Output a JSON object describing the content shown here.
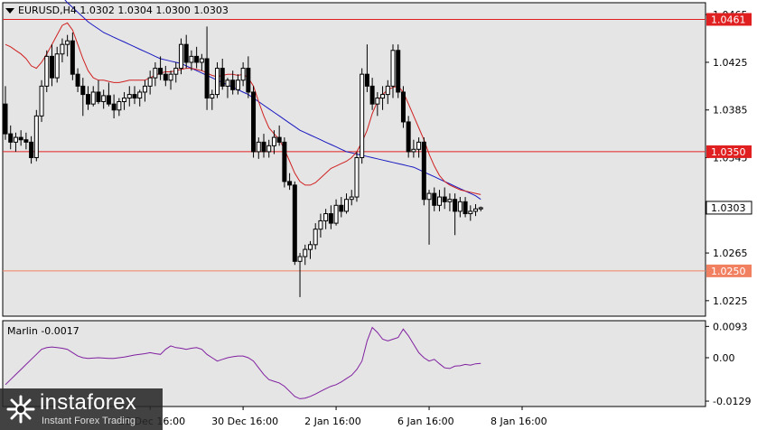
{
  "header": {
    "symbol_line": "EURUSD,H4  1.0302 1.0304 1.0300 1.0303",
    "indicator_line": "Marlin -0.0017"
  },
  "watermark": {
    "brand": "instaforex",
    "tagline": "Instant Forex Trading"
  },
  "colors": {
    "background": "#e5e5e5",
    "panel_border": "#000000",
    "candle": "#000000",
    "ma_red": "#d02020",
    "ma_blue": "#1818c0",
    "level_red": "#e02020",
    "level_orange": "#f08060",
    "oscillator": "#8020a0"
  },
  "chart_data": [
    {
      "type": "candlestick",
      "title": "EURUSD,H4",
      "ohlc_header": {
        "open": 1.0302,
        "high": 1.0304,
        "low": 1.03,
        "close": 1.0303
      },
      "ylim": [
        1.0212,
        1.0475
      ],
      "y_ticks": [
        1.0465,
        1.0425,
        1.0385,
        1.0345,
        1.0305,
        1.0265,
        1.0225
      ],
      "x_tick_labels": [
        "26 Dec 16:00",
        "30 Dec 16:00",
        "2 Jan 16:00",
        "6 Jan 16:00",
        "8 Jan 16:00"
      ],
      "x_tick_indices": [
        28,
        46,
        64,
        82,
        100
      ],
      "horizontal_levels": [
        {
          "value": 1.0461,
          "label": "1.0461",
          "style": "red"
        },
        {
          "value": 1.035,
          "label": "1.0350",
          "style": "red"
        },
        {
          "value": 1.025,
          "label": "1.0250",
          "style": "orange"
        }
      ],
      "current_price": {
        "value": 1.0303,
        "label": "1.0303"
      },
      "candles": [
        [
          1.039,
          1.0405,
          1.036,
          1.0365
        ],
        [
          1.0365,
          1.0372,
          1.0352,
          1.0358
        ],
        [
          1.0358,
          1.0366,
          1.035,
          1.0362
        ],
        [
          1.0362,
          1.0368,
          1.0355,
          1.036
        ],
        [
          1.036,
          1.0366,
          1.0352,
          1.0358
        ],
        [
          1.0358,
          1.0363,
          1.034,
          1.0345
        ],
        [
          1.0345,
          1.0385,
          1.0342,
          1.038
        ],
        [
          1.038,
          1.041,
          1.0375,
          1.0405
        ],
        [
          1.0405,
          1.0435,
          1.04,
          1.043
        ],
        [
          1.043,
          1.044,
          1.0405,
          1.0412
        ],
        [
          1.0412,
          1.0438,
          1.0408,
          1.0432
        ],
        [
          1.0432,
          1.0445,
          1.0425,
          1.044
        ],
        [
          1.044,
          1.0448,
          1.043,
          1.0443
        ],
        [
          1.0443,
          1.045,
          1.041,
          1.0415
        ],
        [
          1.0415,
          1.042,
          1.04,
          1.0405
        ],
        [
          1.0405,
          1.0412,
          1.038,
          1.0398
        ],
        [
          1.0398,
          1.0405,
          1.0385,
          1.039
        ],
        [
          1.039,
          1.0405,
          1.0388,
          1.04
        ],
        [
          1.04,
          1.041,
          1.039,
          1.0392
        ],
        [
          1.0392,
          1.0402,
          1.0386,
          1.0397
        ],
        [
          1.0397,
          1.0408,
          1.0388,
          1.039
        ],
        [
          1.039,
          1.0398,
          1.0378,
          1.0385
        ],
        [
          1.0385,
          1.0395,
          1.038,
          1.0392
        ],
        [
          1.0392,
          1.04,
          1.0385,
          1.0395
        ],
        [
          1.0395,
          1.0405,
          1.0388,
          1.0398
        ],
        [
          1.0398,
          1.0405,
          1.039,
          1.0395
        ],
        [
          1.0395,
          1.0402,
          1.0388,
          1.04
        ],
        [
          1.04,
          1.041,
          1.0392,
          1.0405
        ],
        [
          1.0405,
          1.0418,
          1.0398,
          1.0412
        ],
        [
          1.0412,
          1.0425,
          1.0405,
          1.042
        ],
        [
          1.042,
          1.043,
          1.041,
          1.0415
        ],
        [
          1.0415,
          1.0422,
          1.0405,
          1.041
        ],
        [
          1.041,
          1.0418,
          1.0402,
          1.0415
        ],
        [
          1.0415,
          1.0425,
          1.0408,
          1.042
        ],
        [
          1.042,
          1.0445,
          1.0415,
          1.044
        ],
        [
          1.044,
          1.0448,
          1.042,
          1.0425
        ],
        [
          1.0425,
          1.0435,
          1.0418,
          1.043
        ],
        [
          1.043,
          1.0438,
          1.042,
          1.0425
        ],
        [
          1.0425,
          1.0432,
          1.0418,
          1.0428
        ],
        [
          1.0428,
          1.0455,
          1.0385,
          1.0395
        ],
        [
          1.0395,
          1.0402,
          1.0385,
          1.0398
        ],
        [
          1.0398,
          1.0425,
          1.0395,
          1.042
        ],
        [
          1.042,
          1.0428,
          1.0402,
          1.0405
        ],
        [
          1.0405,
          1.0412,
          1.0395,
          1.041
        ],
        [
          1.041,
          1.0418,
          1.0398,
          1.0402
        ],
        [
          1.0402,
          1.0415,
          1.0398,
          1.041
        ],
        [
          1.041,
          1.0425,
          1.0405,
          1.042
        ],
        [
          1.042,
          1.043,
          1.0395,
          1.04
        ],
        [
          1.04,
          1.0405,
          1.0345,
          1.035
        ],
        [
          1.035,
          1.0362,
          1.0344,
          1.0358
        ],
        [
          1.0358,
          1.0365,
          1.0345,
          1.035
        ],
        [
          1.035,
          1.036,
          1.0345,
          1.0355
        ],
        [
          1.0355,
          1.0368,
          1.0348,
          1.0362
        ],
        [
          1.0362,
          1.0372,
          1.0355,
          1.0358
        ],
        [
          1.0358,
          1.0362,
          1.032,
          1.0325
        ],
        [
          1.0325,
          1.0332,
          1.0318,
          1.0322
        ],
        [
          1.0322,
          1.0325,
          1.0255,
          1.0258
        ],
        [
          1.0258,
          1.0265,
          1.0228,
          1.0262
        ],
        [
          1.0262,
          1.0272,
          1.0255,
          1.0268
        ],
        [
          1.0268,
          1.0275,
          1.026,
          1.0272
        ],
        [
          1.0272,
          1.029,
          1.0268,
          1.0285
        ],
        [
          1.0285,
          1.0298,
          1.0278,
          1.0292
        ],
        [
          1.0292,
          1.0302,
          1.0285,
          1.0298
        ],
        [
          1.0298,
          1.0305,
          1.0285,
          1.029
        ],
        [
          1.029,
          1.031,
          1.0288,
          1.0305
        ],
        [
          1.0305,
          1.0312,
          1.0295,
          1.03
        ],
        [
          1.03,
          1.0315,
          1.0298,
          1.031
        ],
        [
          1.031,
          1.0318,
          1.0305,
          1.0312
        ],
        [
          1.0312,
          1.035,
          1.0308,
          1.0345
        ],
        [
          1.0345,
          1.042,
          1.034,
          1.0415
        ],
        [
          1.0415,
          1.044,
          1.04,
          1.0405
        ],
        [
          1.0405,
          1.0412,
          1.0385,
          1.039
        ],
        [
          1.039,
          1.04,
          1.038,
          1.0395
        ],
        [
          1.0395,
          1.0405,
          1.0385,
          1.0398
        ],
        [
          1.0398,
          1.041,
          1.039,
          1.0405
        ],
        [
          1.0405,
          1.044,
          1.0395,
          1.0435
        ],
        [
          1.0435,
          1.044,
          1.0395,
          1.04
        ],
        [
          1.04,
          1.0405,
          1.037,
          1.0375
        ],
        [
          1.0375,
          1.038,
          1.0345,
          1.035
        ],
        [
          1.035,
          1.036,
          1.0345,
          1.0352
        ],
        [
          1.0352,
          1.0362,
          1.0345,
          1.0358
        ],
        [
          1.0358,
          1.0362,
          1.0305,
          1.031
        ],
        [
          1.031,
          1.0318,
          1.0272,
          1.0315
        ],
        [
          1.0315,
          1.032,
          1.03,
          1.0305
        ],
        [
          1.0305,
          1.0318,
          1.03,
          1.0312
        ],
        [
          1.0312,
          1.032,
          1.0302,
          1.0308
        ],
        [
          1.0308,
          1.0315,
          1.03,
          1.031
        ],
        [
          1.031,
          1.0315,
          1.028,
          1.03
        ],
        [
          1.03,
          1.0312,
          1.0295,
          1.0308
        ],
        [
          1.0308,
          1.0312,
          1.0295,
          1.0298
        ],
        [
          1.0298,
          1.0305,
          1.0292,
          1.03
        ],
        [
          1.03,
          1.0306,
          1.0296,
          1.0302
        ],
        [
          1.0302,
          1.0304,
          1.03,
          1.0303
        ]
      ],
      "ma_red": [
        1.044,
        1.0438,
        1.0435,
        1.0432,
        1.0428,
        1.0422,
        1.042,
        1.0425,
        1.0432,
        1.044,
        1.0448,
        1.0456,
        1.0458,
        1.0452,
        1.044,
        1.0428,
        1.0418,
        1.0412,
        1.041,
        1.041,
        1.0409,
        1.0408,
        1.0408,
        1.0409,
        1.041,
        1.041,
        1.041,
        1.041,
        1.0412,
        1.0414,
        1.0416,
        1.0417,
        1.0417,
        1.0418,
        1.0419,
        1.042,
        1.042,
        1.0419,
        1.0418,
        1.0416,
        1.0414,
        1.0413,
        1.0414,
        1.0415,
        1.0415,
        1.0414,
        1.0415,
        1.0412,
        1.0405,
        1.0392,
        1.038,
        1.037,
        1.0365,
        1.036,
        1.0352,
        1.0342,
        1.0332,
        1.0325,
        1.0322,
        1.0322,
        1.0324,
        1.0328,
        1.0332,
        1.0336,
        1.0338,
        1.034,
        1.0342,
        1.0345,
        1.035,
        1.0358,
        1.0368,
        1.0382,
        1.0392,
        1.0398,
        1.0402,
        1.0404,
        1.0405,
        1.04,
        1.039,
        1.038,
        1.037,
        1.036,
        1.0348,
        1.0338,
        1.033,
        1.0325,
        1.0322,
        1.032,
        1.0318,
        1.0317,
        1.0316,
        1.0315,
        1.0314
      ],
      "ma_blue": [
        1.054,
        1.0534,
        1.0528,
        1.0522,
        1.0516,
        1.051,
        1.0505,
        1.05,
        1.0495,
        1.049,
        1.0485,
        1.048,
        1.0475,
        1.0471,
        1.0467,
        1.0463,
        1.0459,
        1.0456,
        1.0453,
        1.045,
        1.0448,
        1.0446,
        1.0444,
        1.0442,
        1.044,
        1.0438,
        1.0436,
        1.0434,
        1.0432,
        1.043,
        1.0428,
        1.0427,
        1.0426,
        1.0425,
        1.0424,
        1.0422,
        1.042,
        1.0418,
        1.0416,
        1.0414,
        1.0412,
        1.041,
        1.0408,
        1.0406,
        1.0404,
        1.0402,
        1.04,
        1.0398,
        1.0395,
        1.0392,
        1.0389,
        1.0386,
        1.0383,
        1.038,
        1.0377,
        1.0374,
        1.0371,
        1.0368,
        1.0366,
        1.0364,
        1.0362,
        1.036,
        1.0358,
        1.0356,
        1.0354,
        1.0352,
        1.035,
        1.0349,
        1.0348,
        1.0347,
        1.0346,
        1.0345,
        1.0344,
        1.0343,
        1.0342,
        1.0341,
        1.034,
        1.0339,
        1.0338,
        1.0337,
        1.0335,
        1.0333,
        1.0331,
        1.0329,
        1.0327,
        1.0325,
        1.0323,
        1.0321,
        1.0319,
        1.0317,
        1.0315,
        1.0313,
        1.031
      ]
    },
    {
      "type": "line",
      "title": "Marlin",
      "current_value": -0.0017,
      "ylim": [
        -0.0145,
        0.011
      ],
      "y_ticks": [
        0.0093,
        0.0,
        -0.0129
      ],
      "y_tick_labels": [
        "0.0093",
        "0.00",
        "-0.0129"
      ],
      "values": [
        -0.008,
        -0.0065,
        -0.005,
        -0.0035,
        -0.002,
        -0.0005,
        0.001,
        0.0025,
        0.003,
        0.0032,
        0.003,
        0.0028,
        0.0025,
        0.0015,
        0.0005,
        0.0,
        -0.0002,
        -0.0001,
        0.0,
        -0.0001,
        -0.0002,
        -0.0002,
        0.0,
        0.0002,
        0.0005,
        0.0008,
        0.001,
        0.0012,
        0.0015,
        0.0012,
        0.001,
        0.0025,
        0.0035,
        0.003,
        0.0028,
        0.0025,
        0.0028,
        0.003,
        0.0025,
        0.001,
        0.0,
        -0.001,
        -0.0005,
        0.0,
        0.0003,
        0.0005,
        0.0005,
        0.0,
        -0.001,
        -0.003,
        -0.005,
        -0.0065,
        -0.007,
        -0.0075,
        -0.0085,
        -0.01,
        -0.0115,
        -0.0122,
        -0.012,
        -0.0115,
        -0.0108,
        -0.01,
        -0.0092,
        -0.0085,
        -0.008,
        -0.0072,
        -0.0062,
        -0.0052,
        -0.0035,
        -0.001,
        0.005,
        0.009,
        0.0075,
        0.0055,
        0.005,
        0.0055,
        0.006,
        0.0085,
        0.0065,
        0.004,
        0.0015,
        0.0,
        -0.001,
        -0.0005,
        -0.0018,
        -0.003,
        -0.0032,
        -0.0025,
        -0.0024,
        -0.002,
        -0.0022,
        -0.0018,
        -0.0017
      ]
    }
  ]
}
